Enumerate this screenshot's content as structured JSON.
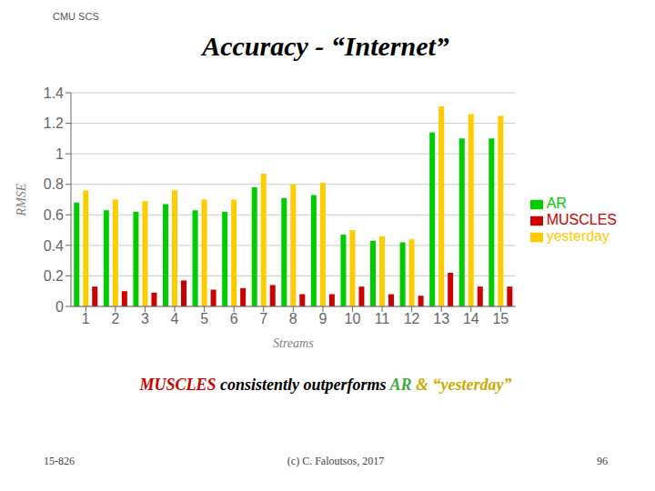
{
  "chart_data": {
    "type": "bar",
    "title": "Accuracy - “Internet”",
    "xlabel": "Streams",
    "ylabel": "RMSE",
    "categories": [
      "1",
      "2",
      "3",
      "4",
      "5",
      "6",
      "7",
      "8",
      "9",
      "10",
      "11",
      "12",
      "13",
      "14",
      "15"
    ],
    "series": [
      {
        "name": "AR",
        "color": "#00cc00",
        "values": [
          0.68,
          0.63,
          0.62,
          0.67,
          0.63,
          0.62,
          0.78,
          0.71,
          0.73,
          0.47,
          0.43,
          0.42,
          1.14,
          1.1,
          1.1
        ]
      },
      {
        "name": "yesterday",
        "color": "#ffcc00",
        "values": [
          0.76,
          0.7,
          0.69,
          0.76,
          0.7,
          0.7,
          0.87,
          0.8,
          0.81,
          0.5,
          0.46,
          0.44,
          1.31,
          1.26,
          1.25
        ]
      },
      {
        "name": "MUSCLES",
        "color": "#cc0000",
        "values": [
          0.13,
          0.1,
          0.09,
          0.17,
          0.11,
          0.12,
          0.14,
          0.08,
          0.08,
          0.13,
          0.08,
          0.07,
          0.22,
          0.13,
          0.13
        ]
      }
    ],
    "ylim": [
      0,
      1.4
    ],
    "yticks": [
      0,
      0.2,
      0.4,
      0.6,
      0.8,
      1,
      1.2,
      1.4
    ],
    "grid": true,
    "legend": "right",
    "annotations": [
      {
        "text": "CMU SCS",
        "color": "#555555"
      },
      {
        "text": "MUSCLES",
        "color": "#cc0000"
      },
      {
        "text": " consistently outperforms ",
        "color": "#000000"
      },
      {
        "text": "AR",
        "color": "#44aa44"
      },
      {
        "text": " & “yesterday”",
        "color": "#ccaa00"
      },
      {
        "text": "15-826",
        "color": "#444444"
      },
      {
        "text": "(c) C. Faloutsos, 2017",
        "color": "#444444"
      },
      {
        "text": "96",
        "color": "#444444"
      }
    ]
  }
}
